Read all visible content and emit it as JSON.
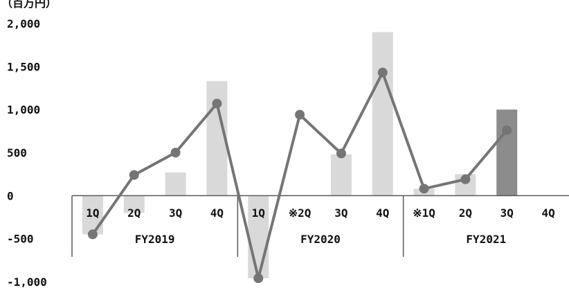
{
  "chart_data": {
    "type": "bar+line",
    "unit_label": "（百万円）",
    "y_ticks": [
      "2,000",
      "1,500",
      "1,000",
      "500",
      "0",
      "-500",
      "-1,000"
    ],
    "ylim": [
      -1000,
      2000
    ],
    "categories": [
      "1Q",
      "2Q",
      "3Q",
      "4Q",
      "1Q",
      "※2Q",
      "3Q",
      "4Q",
      "※1Q",
      "2Q",
      "3Q",
      "4Q"
    ],
    "groups": [
      {
        "label": "FY2019",
        "count": 4
      },
      {
        "label": "FY2020",
        "count": 4
      },
      {
        "label": "FY2021",
        "count": 4
      }
    ],
    "bar_values": [
      -450,
      -200,
      270,
      1330,
      -960,
      0,
      480,
      1900,
      80,
      250,
      1000,
      null
    ],
    "line_values": [
      -450,
      240,
      500,
      1070,
      -960,
      940,
      490,
      1430,
      80,
      190,
      760,
      null
    ],
    "highlight_index": 10,
    "colors": {
      "bar": "#d9d9d9",
      "bar_highlight": "#8c8c8c",
      "line": "#757575",
      "axis": "#595959"
    }
  }
}
